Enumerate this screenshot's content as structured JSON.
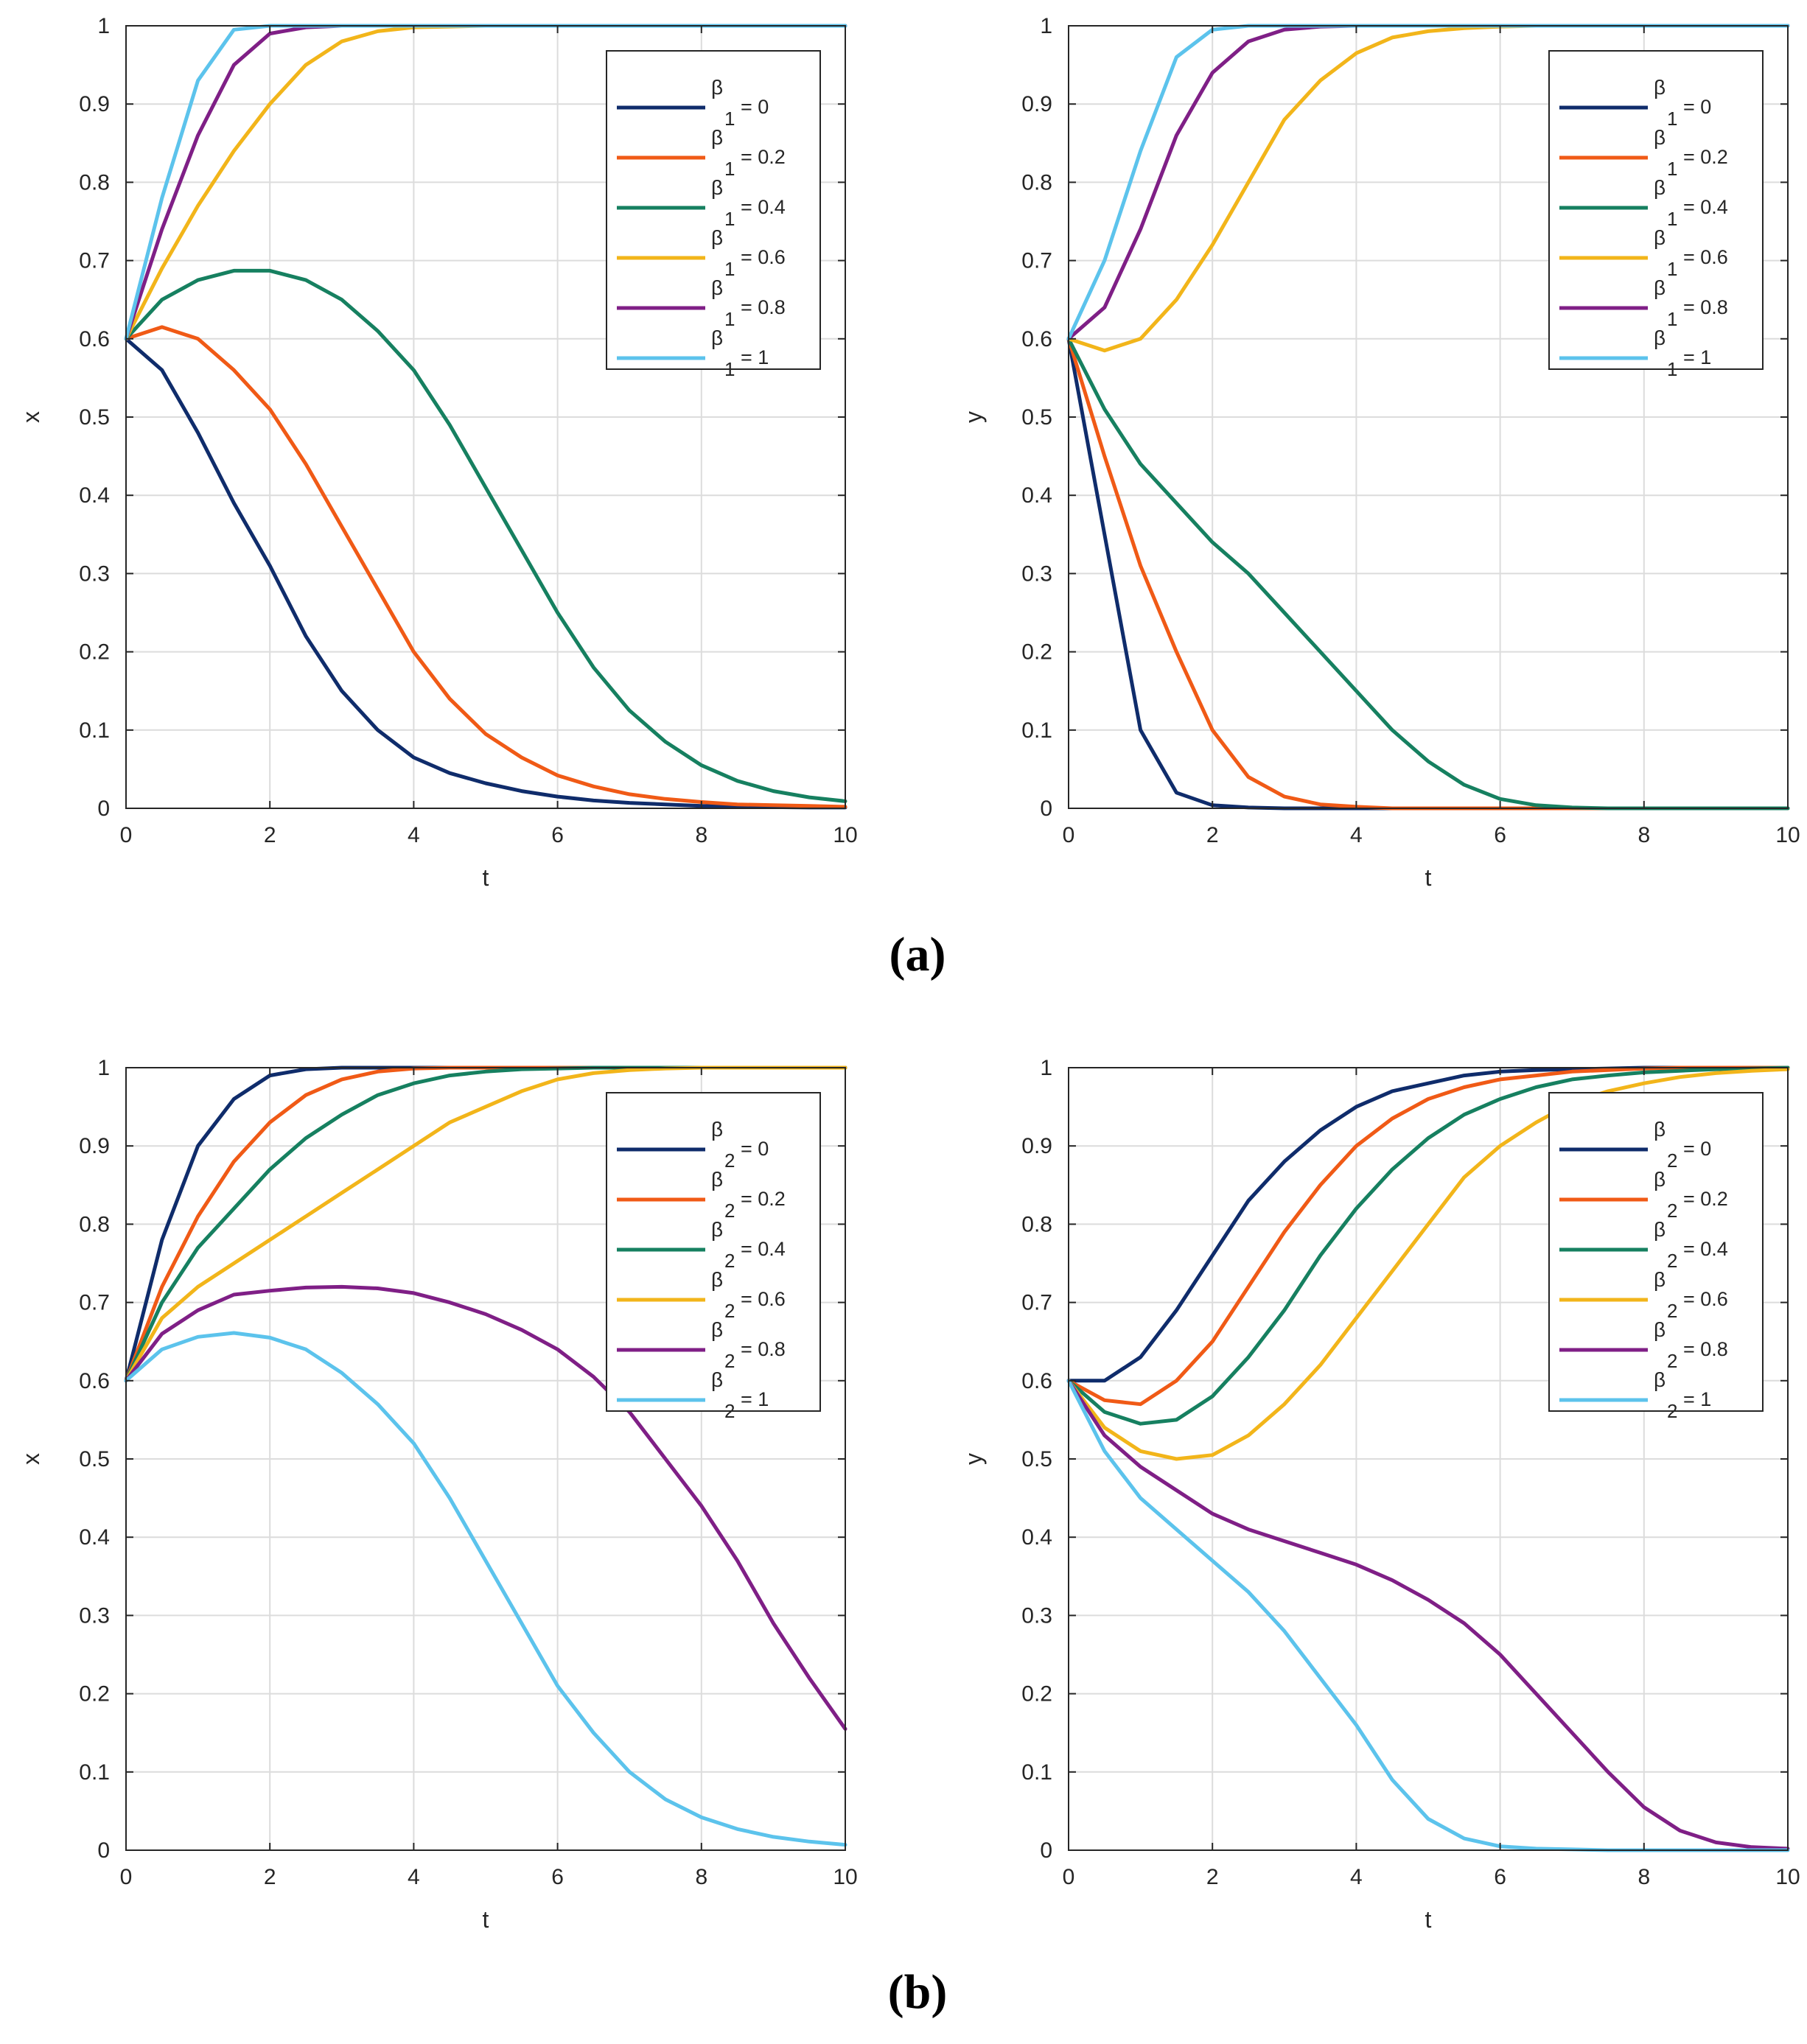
{
  "captions": [
    "(a)",
    "(b)"
  ],
  "colors": {
    "navy": "#0f2c6b",
    "orange": "#f05a16",
    "green": "#168060",
    "gold": "#f2b51a",
    "purple": "#7f1f86",
    "skyblue": "#5cc3ec",
    "grid": "#dcdcdc",
    "axis": "#262626"
  },
  "chart_data": [
    {
      "type": "line",
      "panel": "a-left",
      "xlabel": "t",
      "ylabel": "x",
      "xlim": [
        0,
        10
      ],
      "ylim": [
        0,
        1
      ],
      "xticks": [
        0,
        2,
        4,
        6,
        8,
        10
      ],
      "yticks": [
        0,
        0.1,
        0.2,
        0.3,
        0.4,
        0.5,
        0.6,
        0.7,
        0.8,
        0.9,
        1
      ],
      "ytick_labels": [
        "0",
        "0.1",
        "0.2",
        "0.3",
        "0.4",
        "0.5",
        "0.6",
        "0.7",
        "0.8",
        "0.9",
        "1"
      ],
      "grid": true,
      "legend_position": "top-right",
      "legend_symbol": "β",
      "legend_subscript": "1",
      "x": [
        0,
        0.5,
        1,
        1.5,
        2,
        2.5,
        3,
        3.5,
        4,
        4.5,
        5,
        5.5,
        6,
        6.5,
        7,
        7.5,
        8,
        8.5,
        9,
        9.5,
        10
      ],
      "series": [
        {
          "name": "= 0",
          "color": "navy",
          "values": [
            0.6,
            0.56,
            0.48,
            0.39,
            0.31,
            0.22,
            0.15,
            0.1,
            0.065,
            0.045,
            0.032,
            0.022,
            0.015,
            0.01,
            0.007,
            0.005,
            0.003,
            0.002,
            0.0015,
            0.001,
            0.001
          ]
        },
        {
          "name": "= 0.2",
          "color": "orange",
          "values": [
            0.6,
            0.615,
            0.6,
            0.56,
            0.51,
            0.44,
            0.36,
            0.28,
            0.2,
            0.14,
            0.095,
            0.065,
            0.042,
            0.028,
            0.018,
            0.012,
            0.008,
            0.005,
            0.004,
            0.003,
            0.002
          ]
        },
        {
          "name": "= 0.4",
          "color": "green",
          "values": [
            0.6,
            0.65,
            0.675,
            0.687,
            0.687,
            0.675,
            0.65,
            0.61,
            0.56,
            0.49,
            0.41,
            0.33,
            0.25,
            0.18,
            0.125,
            0.085,
            0.055,
            0.035,
            0.022,
            0.014,
            0.009
          ]
        },
        {
          "name": "= 0.6",
          "color": "gold",
          "values": [
            0.6,
            0.69,
            0.77,
            0.84,
            0.9,
            0.95,
            0.98,
            0.993,
            0.998,
            0.999,
            1,
            1,
            1,
            1,
            1,
            1,
            1,
            1,
            1,
            1,
            1
          ]
        },
        {
          "name": "= 0.8",
          "color": "purple",
          "values": [
            0.6,
            0.74,
            0.86,
            0.95,
            0.99,
            0.998,
            1,
            1,
            1,
            1,
            1,
            1,
            1,
            1,
            1,
            1,
            1,
            1,
            1,
            1,
            1
          ]
        },
        {
          "name": "= 1",
          "color": "skyblue",
          "values": [
            0.6,
            0.78,
            0.93,
            0.995,
            1,
            1,
            1,
            1,
            1,
            1,
            1,
            1,
            1,
            1,
            1,
            1,
            1,
            1,
            1,
            1,
            1
          ]
        }
      ]
    },
    {
      "type": "line",
      "panel": "a-right",
      "xlabel": "t",
      "ylabel": "y",
      "xlim": [
        0,
        10
      ],
      "ylim": [
        0,
        1
      ],
      "xticks": [
        0,
        2,
        4,
        6,
        8,
        10
      ],
      "yticks": [
        0,
        0.1,
        0.2,
        0.3,
        0.4,
        0.5,
        0.6,
        0.7,
        0.8,
        0.9,
        1
      ],
      "ytick_labels": [
        "0",
        "0.1",
        "0.2",
        "0.3",
        "0.4",
        "0.5",
        "0.6",
        "0.7",
        "0.8",
        "0.9",
        "1"
      ],
      "grid": true,
      "legend_position": "top-right",
      "legend_symbol": "β",
      "legend_subscript": "1",
      "x": [
        0,
        0.5,
        1,
        1.5,
        2,
        2.5,
        3,
        3.5,
        4,
        4.5,
        5,
        5.5,
        6,
        6.5,
        7,
        7.5,
        8,
        8.5,
        9,
        9.5,
        10
      ],
      "series": [
        {
          "name": "= 0",
          "color": "navy",
          "values": [
            0.6,
            0.35,
            0.1,
            0.02,
            0.004,
            0.001,
            0,
            0,
            0,
            0,
            0,
            0,
            0,
            0,
            0,
            0,
            0,
            0,
            0,
            0,
            0
          ]
        },
        {
          "name": "= 0.2",
          "color": "orange",
          "values": [
            0.6,
            0.45,
            0.31,
            0.2,
            0.1,
            0.04,
            0.015,
            0.005,
            0.002,
            0,
            0,
            0,
            0,
            0,
            0,
            0,
            0,
            0,
            0,
            0,
            0
          ]
        },
        {
          "name": "= 0.4",
          "color": "green",
          "values": [
            0.6,
            0.51,
            0.44,
            0.39,
            0.34,
            0.3,
            0.25,
            0.2,
            0.15,
            0.1,
            0.06,
            0.03,
            0.012,
            0.004,
            0.001,
            0,
            0,
            0,
            0,
            0,
            0
          ]
        },
        {
          "name": "= 0.6",
          "color": "gold",
          "values": [
            0.6,
            0.585,
            0.6,
            0.65,
            0.72,
            0.8,
            0.88,
            0.93,
            0.965,
            0.985,
            0.993,
            0.997,
            0.999,
            1,
            1,
            1,
            1,
            1,
            1,
            1,
            1
          ]
        },
        {
          "name": "= 0.8",
          "color": "purple",
          "values": [
            0.6,
            0.64,
            0.74,
            0.86,
            0.94,
            0.98,
            0.995,
            0.999,
            1,
            1,
            1,
            1,
            1,
            1,
            1,
            1,
            1,
            1,
            1,
            1,
            1
          ]
        },
        {
          "name": "= 1",
          "color": "skyblue",
          "values": [
            0.6,
            0.7,
            0.84,
            0.96,
            0.995,
            1,
            1,
            1,
            1,
            1,
            1,
            1,
            1,
            1,
            1,
            1,
            1,
            1,
            1,
            1,
            1
          ]
        }
      ]
    },
    {
      "type": "line",
      "panel": "b-left",
      "xlabel": "t",
      "ylabel": "x",
      "xlim": [
        0,
        10
      ],
      "ylim": [
        0,
        1
      ],
      "xticks": [
        0,
        2,
        4,
        6,
        8,
        10
      ],
      "yticks": [
        0,
        0.1,
        0.2,
        0.3,
        0.4,
        0.5,
        0.6,
        0.7,
        0.8,
        0.9,
        1
      ],
      "ytick_labels": [
        "0",
        "0.1",
        "0.2",
        "0.3",
        "0.4",
        "0.5",
        "0.6",
        "0.7",
        "0.8",
        "0.9",
        "1"
      ],
      "grid": true,
      "legend_position": "top-right",
      "legend_symbol": "β",
      "legend_subscript": "2",
      "x": [
        0,
        0.5,
        1,
        1.5,
        2,
        2.5,
        3,
        3.5,
        4,
        4.5,
        5,
        5.5,
        6,
        6.5,
        7,
        7.5,
        8,
        8.5,
        9,
        9.5,
        10
      ],
      "series": [
        {
          "name": "= 0",
          "color": "navy",
          "values": [
            0.6,
            0.78,
            0.9,
            0.96,
            0.99,
            0.998,
            1,
            1,
            1,
            1,
            1,
            1,
            1,
            1,
            1,
            1,
            1,
            1,
            1,
            1,
            1
          ]
        },
        {
          "name": "= 0.2",
          "color": "orange",
          "values": [
            0.6,
            0.72,
            0.81,
            0.88,
            0.93,
            0.965,
            0.985,
            0.995,
            0.999,
            1,
            1,
            1,
            1,
            1,
            1,
            1,
            1,
            1,
            1,
            1,
            1
          ]
        },
        {
          "name": "= 0.4",
          "color": "green",
          "values": [
            0.6,
            0.7,
            0.77,
            0.82,
            0.87,
            0.91,
            0.94,
            0.965,
            0.98,
            0.99,
            0.995,
            0.998,
            0.999,
            1,
            1,
            1,
            1,
            1,
            1,
            1,
            1
          ]
        },
        {
          "name": "= 0.6",
          "color": "gold",
          "values": [
            0.6,
            0.68,
            0.72,
            0.75,
            0.78,
            0.81,
            0.84,
            0.87,
            0.9,
            0.93,
            0.95,
            0.97,
            0.985,
            0.993,
            0.997,
            0.999,
            1,
            1,
            1,
            1,
            1
          ]
        },
        {
          "name": "= 0.8",
          "color": "purple",
          "values": [
            0.6,
            0.66,
            0.69,
            0.71,
            0.715,
            0.719,
            0.72,
            0.718,
            0.712,
            0.7,
            0.685,
            0.665,
            0.64,
            0.605,
            0.56,
            0.5,
            0.44,
            0.37,
            0.29,
            0.22,
            0.155
          ]
        },
        {
          "name": "= 1",
          "color": "skyblue",
          "values": [
            0.6,
            0.64,
            0.656,
            0.661,
            0.655,
            0.64,
            0.61,
            0.57,
            0.52,
            0.45,
            0.37,
            0.29,
            0.21,
            0.15,
            0.1,
            0.065,
            0.042,
            0.027,
            0.017,
            0.011,
            0.007
          ]
        }
      ]
    },
    {
      "type": "line",
      "panel": "b-right",
      "xlabel": "t",
      "ylabel": "y",
      "xlim": [
        0,
        10
      ],
      "ylim": [
        0,
        1
      ],
      "xticks": [
        0,
        2,
        4,
        6,
        8,
        10
      ],
      "yticks": [
        0,
        0.1,
        0.2,
        0.3,
        0.4,
        0.5,
        0.6,
        0.7,
        0.8,
        0.9,
        1
      ],
      "ytick_labels": [
        "0",
        "0.1",
        "0.2",
        "0.3",
        "0.4",
        "0.5",
        "0.6",
        "0.7",
        "0.8",
        "0.9",
        "1"
      ],
      "grid": true,
      "legend_position": "top-right",
      "legend_symbol": "β",
      "legend_subscript": "2",
      "x": [
        0,
        0.5,
        1,
        1.5,
        2,
        2.5,
        3,
        3.5,
        4,
        4.5,
        5,
        5.5,
        6,
        6.5,
        7,
        7.5,
        8,
        8.5,
        9,
        9.5,
        10
      ],
      "series": [
        {
          "name": "= 0",
          "color": "navy",
          "values": [
            0.6,
            0.6,
            0.63,
            0.69,
            0.76,
            0.83,
            0.88,
            0.92,
            0.95,
            0.97,
            0.98,
            0.99,
            0.995,
            0.997,
            0.998,
            0.999,
            1,
            1,
            1,
            1,
            1
          ]
        },
        {
          "name": "= 0.2",
          "color": "orange",
          "values": [
            0.6,
            0.575,
            0.57,
            0.6,
            0.65,
            0.72,
            0.79,
            0.85,
            0.9,
            0.935,
            0.96,
            0.975,
            0.985,
            0.99,
            0.995,
            0.997,
            0.999,
            1,
            1,
            1,
            1
          ]
        },
        {
          "name": "= 0.4",
          "color": "green",
          "values": [
            0.6,
            0.56,
            0.545,
            0.55,
            0.58,
            0.63,
            0.69,
            0.76,
            0.82,
            0.87,
            0.91,
            0.94,
            0.96,
            0.975,
            0.985,
            0.99,
            0.994,
            0.996,
            0.998,
            0.999,
            1
          ]
        },
        {
          "name": "= 0.6",
          "color": "gold",
          "values": [
            0.6,
            0.54,
            0.51,
            0.5,
            0.505,
            0.53,
            0.57,
            0.62,
            0.68,
            0.74,
            0.8,
            0.86,
            0.9,
            0.93,
            0.955,
            0.97,
            0.98,
            0.988,
            0.993,
            0.996,
            0.998
          ]
        },
        {
          "name": "= 0.8",
          "color": "purple",
          "values": [
            0.6,
            0.53,
            0.49,
            0.46,
            0.43,
            0.41,
            0.395,
            0.38,
            0.365,
            0.345,
            0.32,
            0.29,
            0.25,
            0.2,
            0.15,
            0.1,
            0.055,
            0.025,
            0.01,
            0.004,
            0.002
          ]
        },
        {
          "name": "= 1",
          "color": "skyblue",
          "values": [
            0.6,
            0.51,
            0.45,
            0.41,
            0.37,
            0.33,
            0.28,
            0.22,
            0.16,
            0.09,
            0.04,
            0.015,
            0.005,
            0.002,
            0.001,
            0,
            0,
            0,
            0,
            0,
            0
          ]
        }
      ]
    }
  ]
}
